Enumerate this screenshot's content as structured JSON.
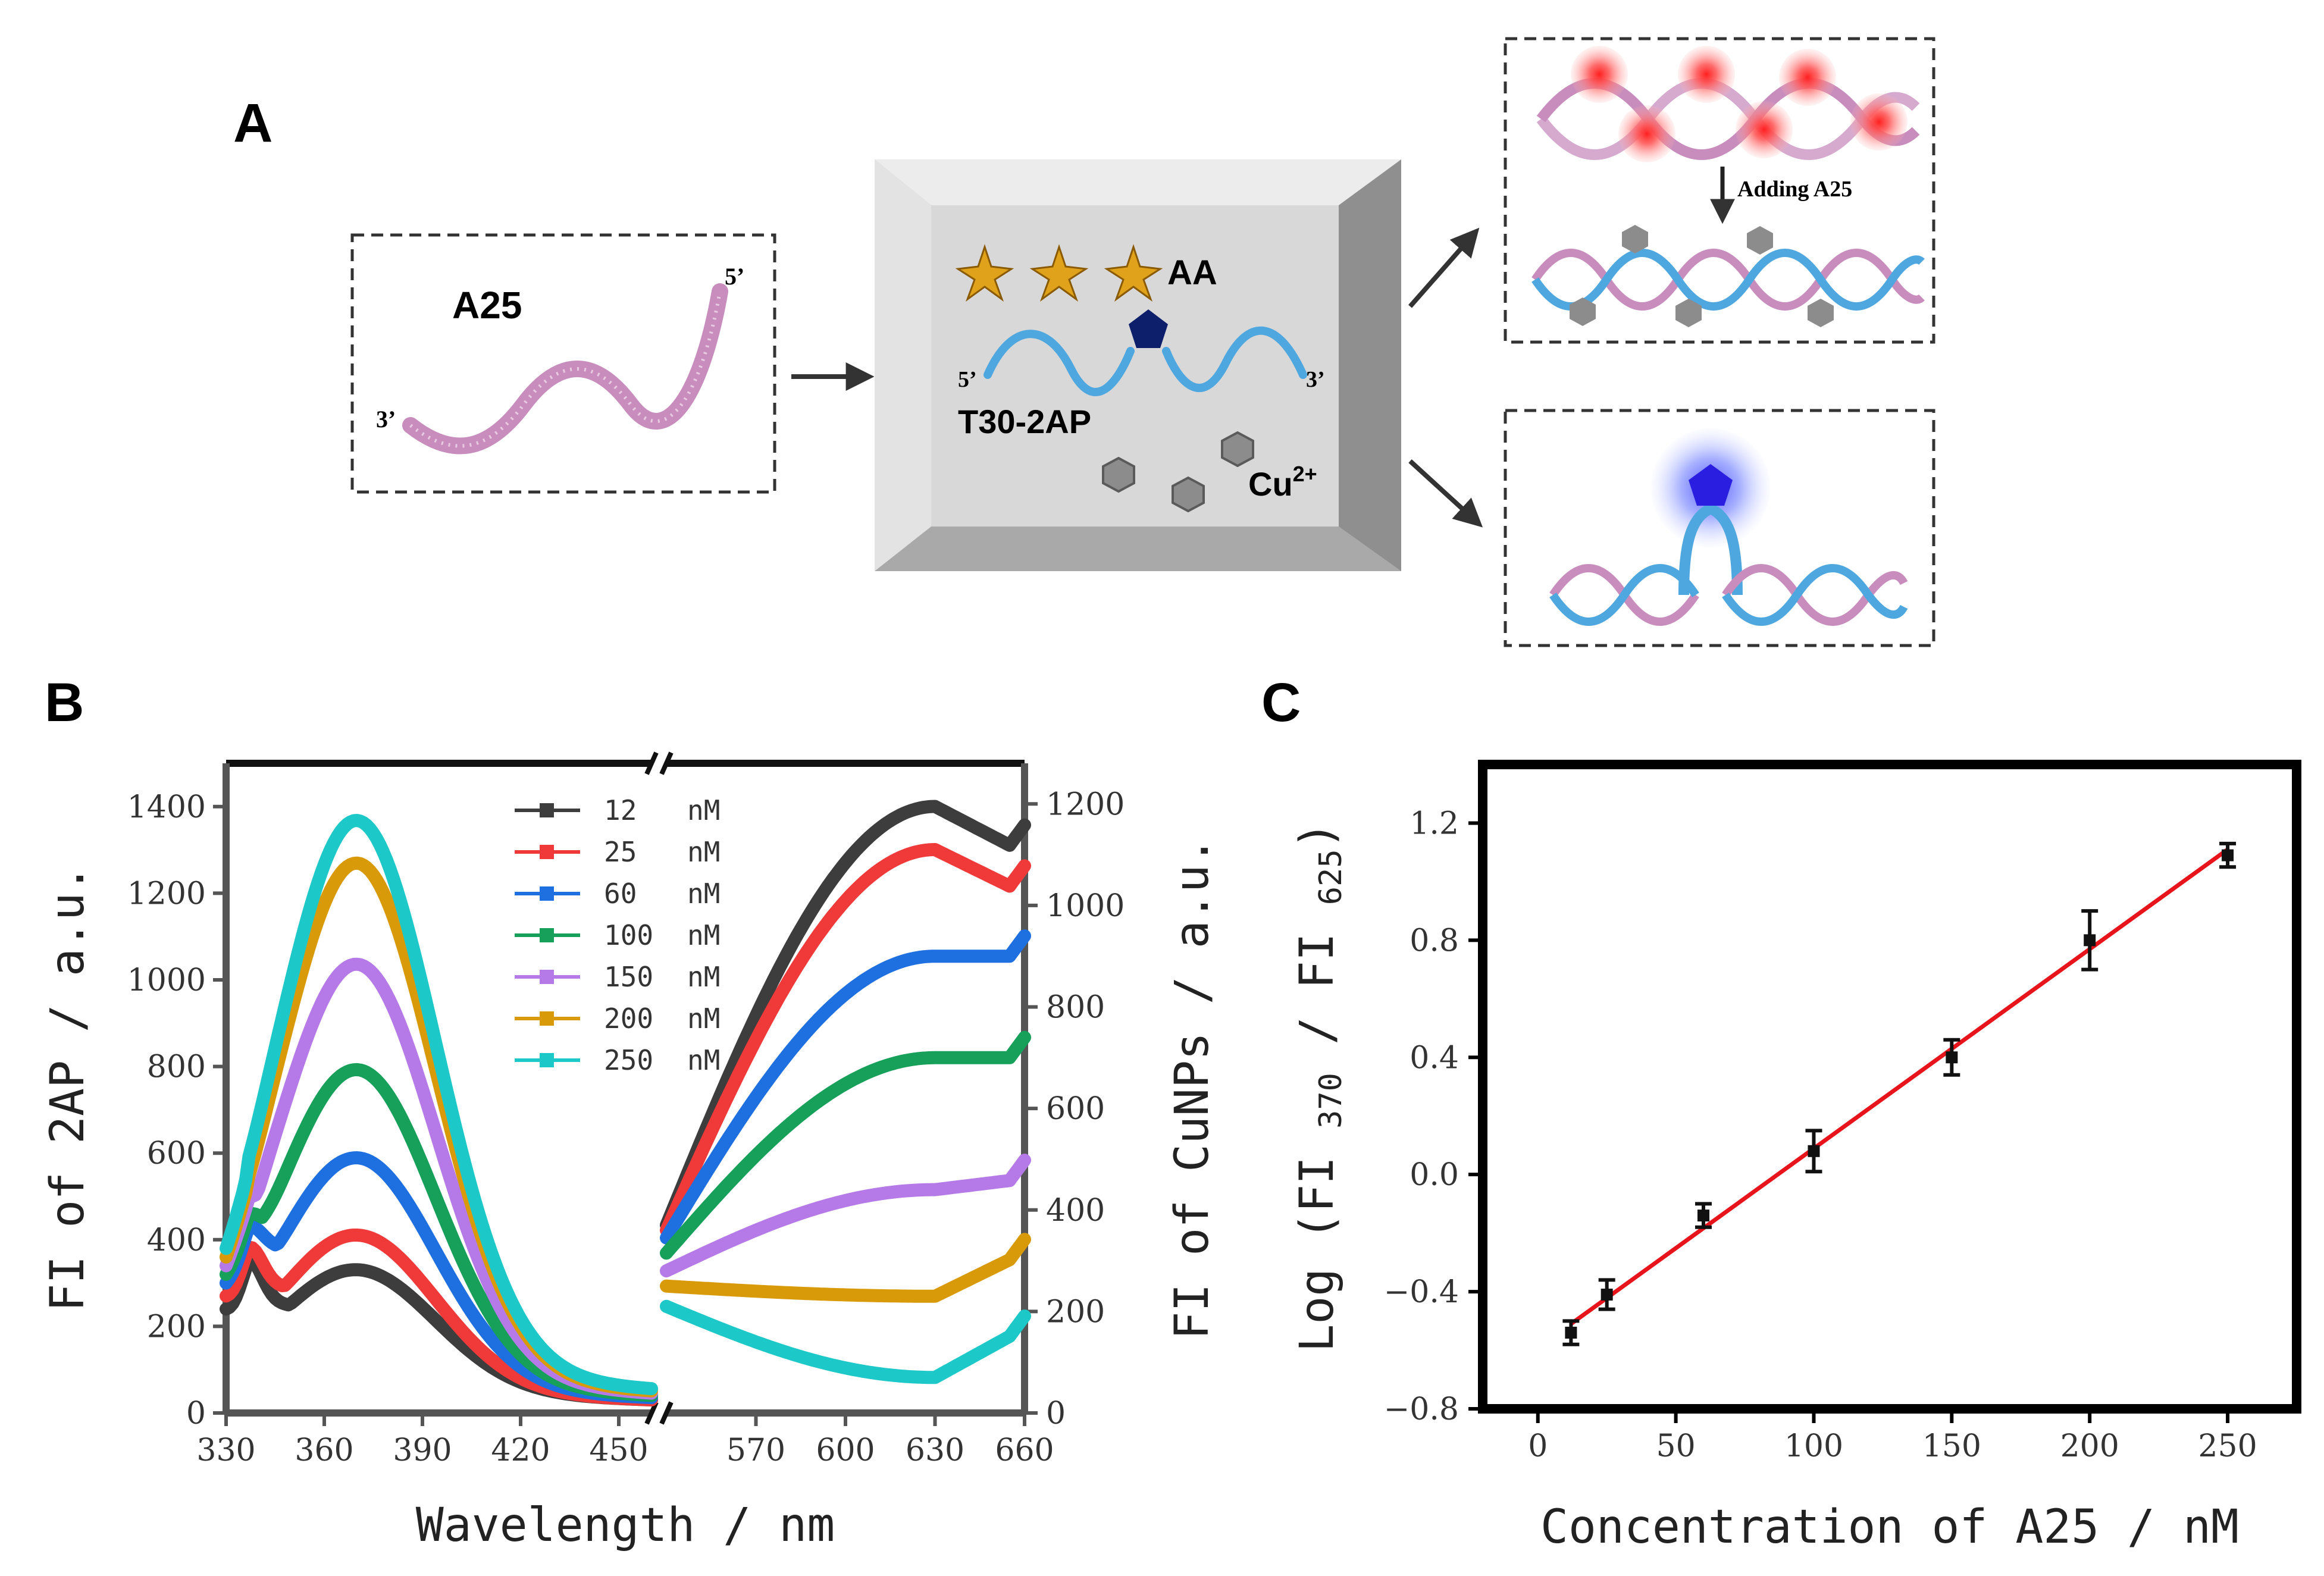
{
  "panels": {
    "a_label": "A",
    "b_label": "B",
    "c_label": "C"
  },
  "scheme": {
    "target_label": "A25",
    "target_5prime": "5’",
    "target_3prime": "3’",
    "probe_5prime": "5’",
    "probe_3prime": "3’",
    "probe_label": "T30-2AP",
    "reagent_label": "AA",
    "ion_label": "Cu",
    "ion_charge": "2+",
    "adding_label": "Adding A25"
  },
  "chart_data": [
    {
      "id": "B",
      "type": "line",
      "xlabel": "Wavelength / nm",
      "ylabel_left": "FI of 2AP / a.u.",
      "ylabel_right": "FI of CuNPs / a.u.",
      "x_ticks_left": [
        "330",
        "360",
        "390",
        "420",
        "450"
      ],
      "x_ticks_right": [
        "570",
        "600",
        "630",
        "660"
      ],
      "left_x_range": [
        330,
        460
      ],
      "right_x_range": [
        540,
        660
      ],
      "ylim_left": [
        0,
        1500
      ],
      "ylim_right": [
        0,
        1280
      ],
      "yticks_left": [
        0,
        200,
        400,
        600,
        800,
        1000,
        1200,
        1400
      ],
      "yticks_right": [
        0,
        200,
        400,
        600,
        800,
        1000,
        1200
      ],
      "legend_position": "top-center",
      "series": [
        {
          "name": "12",
          "unit": "nM",
          "color": "#3d3d3d",
          "peak_2ap": 340,
          "start_2ap": 240,
          "shoulder_2ap": 360,
          "dip_2ap": 250,
          "tail_2ap": 60,
          "cunps_start": 370,
          "cunps_peak": 1195,
          "cunps_end": 1110
        },
        {
          "name": "25",
          "unit": "nM",
          "color": "#f03a3a",
          "peak_2ap": 420,
          "start_2ap": 270,
          "shoulder_2ap": 390,
          "dip_2ap": 290,
          "tail_2ap": 60,
          "cunps_start": 360,
          "cunps_peak": 1110,
          "cunps_end": 1030
        },
        {
          "name": "60",
          "unit": "nM",
          "color": "#1e6fe0",
          "peak_2ap": 600,
          "start_2ap": 300,
          "shoulder_2ap": 440,
          "dip_2ap": 380,
          "tail_2ap": 70,
          "cunps_start": 345,
          "cunps_peak": 900,
          "cunps_end": 900
        },
        {
          "name": "100",
          "unit": "nM",
          "color": "#16a05a",
          "peak_2ap": 805,
          "start_2ap": 320,
          "shoulder_2ap": 470,
          "dip_2ap": 430,
          "tail_2ap": 80,
          "cunps_start": 315,
          "cunps_peak": 700,
          "cunps_end": 700
        },
        {
          "name": "150",
          "unit": "nM",
          "color": "#b579e8",
          "peak_2ap": 1050,
          "start_2ap": 340,
          "shoulder_2ap": 510,
          "dip_2ap": 520,
          "tail_2ap": 90,
          "cunps_start": 280,
          "cunps_peak": 440,
          "cunps_end": 460
        },
        {
          "name": "200",
          "unit": "nM",
          "color": "#d99a0a",
          "peak_2ap": 1285,
          "start_2ap": 360,
          "shoulder_2ap": 550,
          "dip_2ap": 560,
          "tail_2ap": 100,
          "cunps_start": 250,
          "cunps_peak": 230,
          "cunps_end": 310
        },
        {
          "name": "250",
          "unit": "nM",
          "color": "#1dc8c8",
          "peak_2ap": 1385,
          "start_2ap": 380,
          "shoulder_2ap": 580,
          "dip_2ap": 590,
          "tail_2ap": 110,
          "cunps_start": 210,
          "cunps_peak": 70,
          "cunps_end": 160
        }
      ]
    },
    {
      "id": "C",
      "type": "scatter",
      "xlabel": "Concentration of A25 / nM",
      "ylabel_prefix": "Log",
      "ylabel_fi": "FI",
      "ylabel_sub1": "370",
      "ylabel_sub2": "625",
      "xlim": [
        -20,
        275
      ],
      "ylim": [
        -0.8,
        1.4
      ],
      "xticks": [
        0,
        50,
        100,
        150,
        200,
        250
      ],
      "yticks": [
        -0.8,
        -0.4,
        0.0,
        0.4,
        0.8,
        1.2
      ],
      "xtick_labels": [
        "0",
        "50",
        "100",
        "150",
        "200",
        "250"
      ],
      "ytick_labels": [
        "−0.8",
        "−0.4",
        "0.0",
        "0.4",
        "0.8",
        "1.2"
      ],
      "x": [
        12,
        25,
        60,
        100,
        150,
        200,
        250
      ],
      "y": [
        -0.54,
        -0.41,
        -0.14,
        0.08,
        0.4,
        0.8,
        1.09
      ],
      "error": [
        0.04,
        0.05,
        0.04,
        0.07,
        0.06,
        0.1,
        0.04
      ],
      "fit": {
        "x": [
          12,
          250
        ],
        "y": [
          -0.51,
          1.11
        ],
        "color": "#e8141c"
      },
      "marker_color": "#111111"
    }
  ]
}
